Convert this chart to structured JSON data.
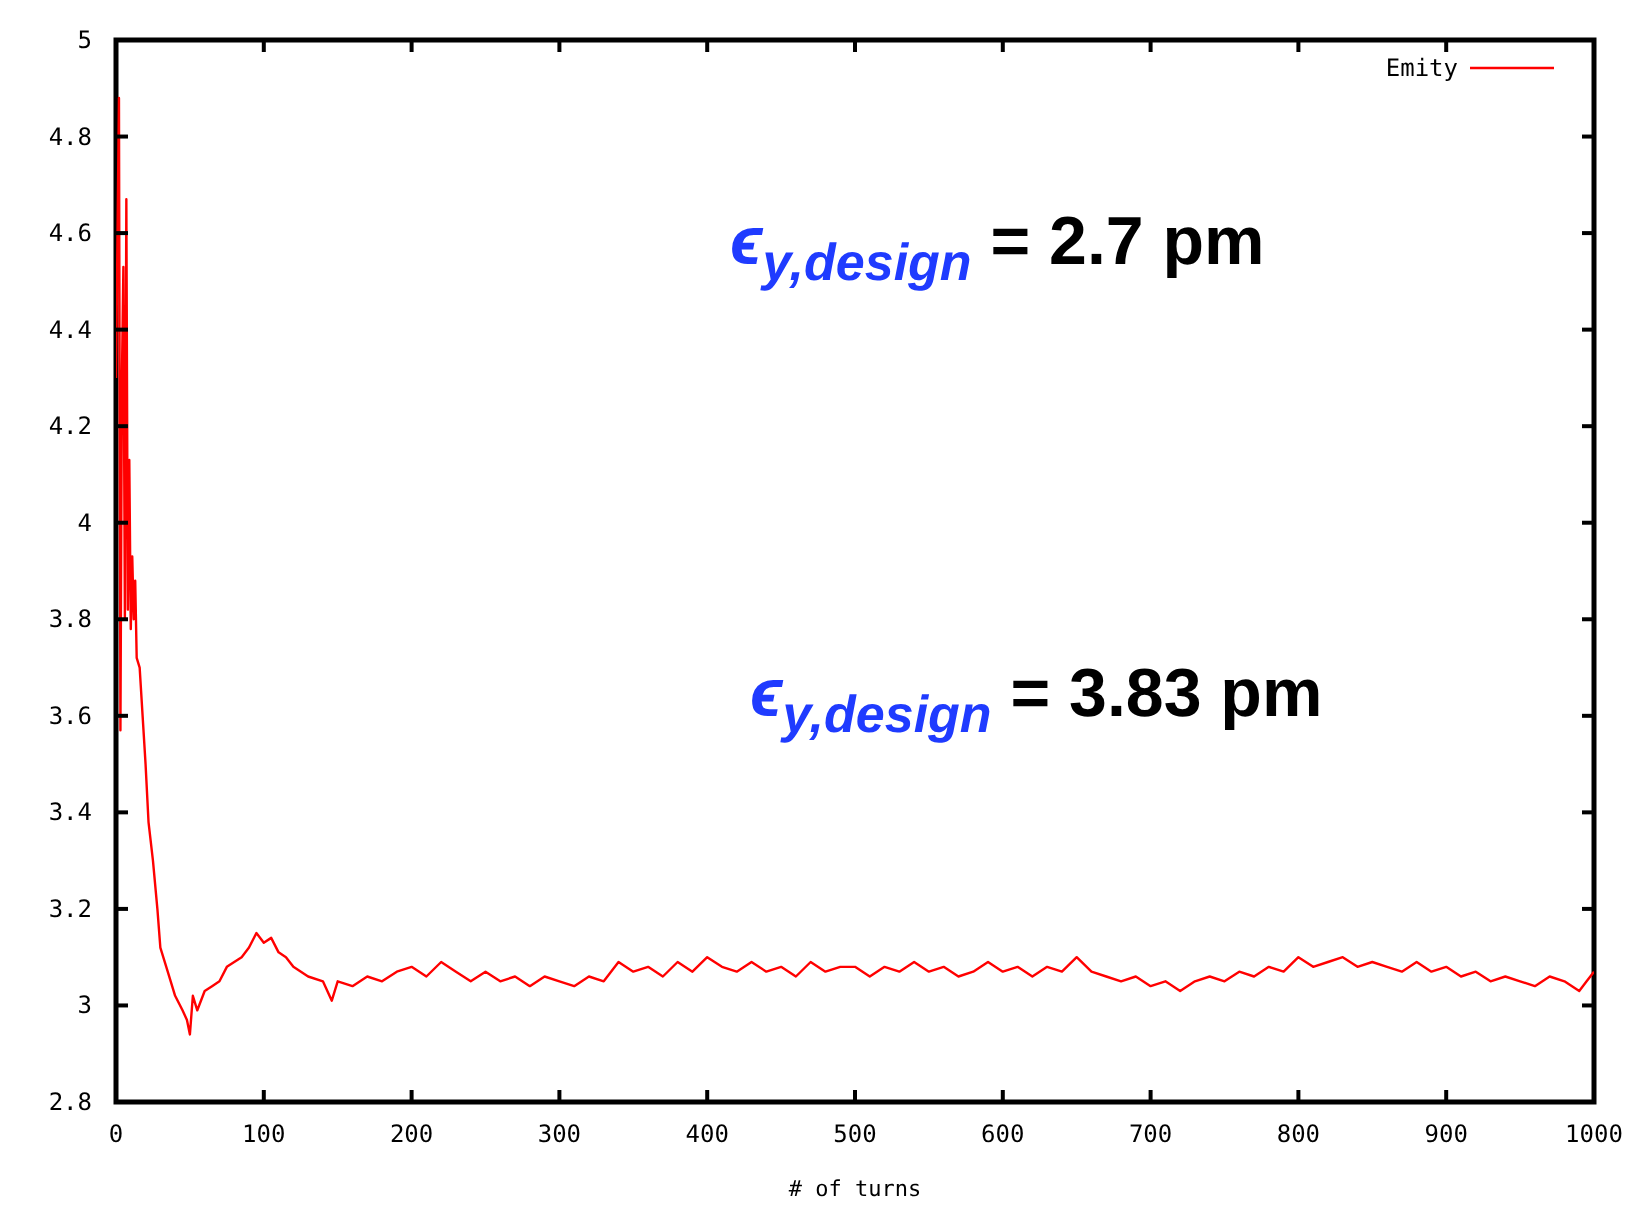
{
  "chart_data": {
    "type": "line",
    "xlabel": "# of turns",
    "xlim": [
      0,
      1000
    ],
    "xticks": [
      0,
      100,
      200,
      300,
      400,
      500,
      600,
      700,
      800,
      900,
      1000
    ],
    "ylim": [
      2.8,
      5
    ],
    "yticks": [
      {
        "value": 2.8,
        "label": "2.8"
      },
      {
        "value": 3,
        "label": "3"
      },
      {
        "value": 3.2,
        "label": "3.2"
      },
      {
        "value": 3.4,
        "label": "3.4"
      },
      {
        "value": 3.6,
        "label": "3.6"
      },
      {
        "value": 3.8,
        "label": "3.8"
      },
      {
        "value": 4,
        "label": "4"
      },
      {
        "value": 4.2,
        "label": "4.2"
      },
      {
        "value": 4.4,
        "label": "4.4"
      },
      {
        "value": 4.6,
        "label": "4.6"
      },
      {
        "value": 4.8,
        "label": "4.8"
      },
      {
        "value": 5,
        "label": "5"
      }
    ],
    "grid": false,
    "legend": "top right",
    "marker": "none",
    "line_style": "solid",
    "annotations": [
      "ϵ$_{y,design}$ = 2.7 pm",
      "ϵ$_{y,design}$ = 3.83 pm"
    ],
    "series": [
      {
        "name": "Emity",
        "color": "#ff0000",
        "x": [
          0,
          2,
          3,
          4,
          5,
          6,
          7,
          8,
          9,
          10,
          11,
          12,
          13,
          14,
          16,
          18,
          20,
          22,
          25,
          28,
          30,
          35,
          40,
          45,
          48,
          50,
          52,
          55,
          60,
          65,
          70,
          75,
          80,
          85,
          90,
          95,
          100,
          105,
          110,
          115,
          120,
          130,
          140,
          146,
          150,
          160,
          170,
          180,
          190,
          200,
          210,
          220,
          230,
          240,
          250,
          260,
          270,
          280,
          290,
          300,
          310,
          320,
          330,
          340,
          350,
          360,
          370,
          380,
          390,
          400,
          410,
          420,
          430,
          440,
          450,
          460,
          470,
          480,
          490,
          500,
          510,
          520,
          530,
          540,
          550,
          560,
          570,
          580,
          590,
          600,
          610,
          620,
          630,
          640,
          650,
          660,
          670,
          680,
          690,
          700,
          710,
          720,
          730,
          740,
          750,
          760,
          770,
          780,
          790,
          800,
          810,
          820,
          830,
          840,
          850,
          860,
          870,
          880,
          890,
          900,
          910,
          920,
          930,
          940,
          950,
          960,
          970,
          980,
          990,
          995,
          1000
        ],
        "values": [
          4.3,
          4.88,
          3.57,
          4.3,
          4.53,
          3.8,
          4.67,
          3.82,
          4.13,
          3.78,
          3.93,
          3.8,
          3.88,
          3.72,
          3.7,
          3.6,
          3.5,
          3.38,
          3.3,
          3.2,
          3.12,
          3.07,
          3.02,
          2.99,
          2.97,
          2.94,
          3.02,
          2.99,
          3.03,
          3.04,
          3.05,
          3.08,
          3.09,
          3.1,
          3.12,
          3.15,
          3.13,
          3.14,
          3.11,
          3.1,
          3.08,
          3.06,
          3.05,
          3.01,
          3.05,
          3.04,
          3.06,
          3.05,
          3.07,
          3.08,
          3.06,
          3.09,
          3.07,
          3.05,
          3.07,
          3.05,
          3.06,
          3.04,
          3.06,
          3.05,
          3.04,
          3.06,
          3.05,
          3.09,
          3.07,
          3.08,
          3.06,
          3.09,
          3.07,
          3.1,
          3.08,
          3.07,
          3.09,
          3.07,
          3.08,
          3.06,
          3.09,
          3.07,
          3.08,
          3.08,
          3.06,
          3.08,
          3.07,
          3.09,
          3.07,
          3.08,
          3.06,
          3.07,
          3.09,
          3.07,
          3.08,
          3.06,
          3.08,
          3.07,
          3.1,
          3.07,
          3.06,
          3.05,
          3.06,
          3.04,
          3.05,
          3.03,
          3.05,
          3.06,
          3.05,
          3.07,
          3.06,
          3.08,
          3.07,
          3.1,
          3.08,
          3.09,
          3.1,
          3.08,
          3.09,
          3.08,
          3.07,
          3.09,
          3.07,
          3.08,
          3.06,
          3.07,
          3.05,
          3.06,
          3.05,
          3.04,
          3.06,
          3.05,
          3.03,
          3.05,
          3.07
        ]
      }
    ]
  }
}
